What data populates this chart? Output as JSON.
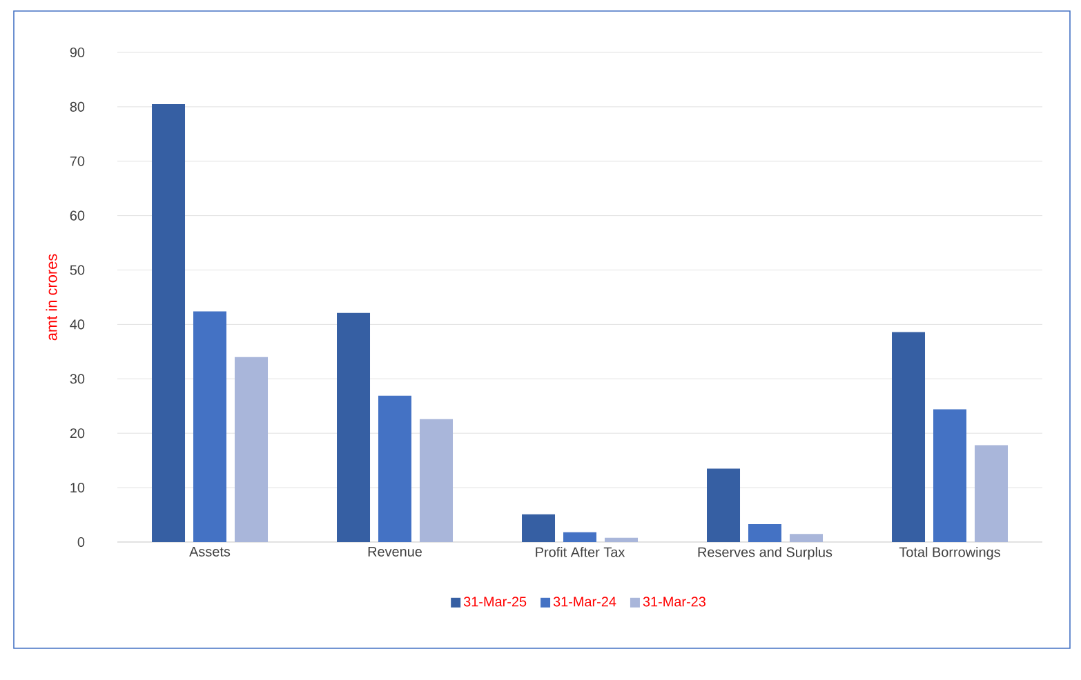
{
  "chart_data": {
    "type": "bar",
    "ylabel": "amt in crores",
    "categories": [
      "Assets",
      "Revenue",
      "Profit After Tax",
      "Reserves and Surplus",
      "Total Borrowings"
    ],
    "series": [
      {
        "name": "31-Mar-25",
        "color": "#365fa3",
        "values": [
          80.5,
          42.1,
          5.1,
          13.5,
          38.6
        ]
      },
      {
        "name": "31-Mar-24",
        "color": "#4472c4",
        "values": [
          42.4,
          26.9,
          1.8,
          3.3,
          24.4
        ]
      },
      {
        "name": "31-Mar-23",
        "color": "#a9b6da",
        "values": [
          34.0,
          22.6,
          0.8,
          1.5,
          17.8
        ]
      }
    ],
    "ylim": [
      0,
      90
    ],
    "yticks": [
      0,
      10,
      20,
      30,
      40,
      50,
      60,
      70,
      80,
      90
    ],
    "grid": "y",
    "legend": "bottom"
  }
}
